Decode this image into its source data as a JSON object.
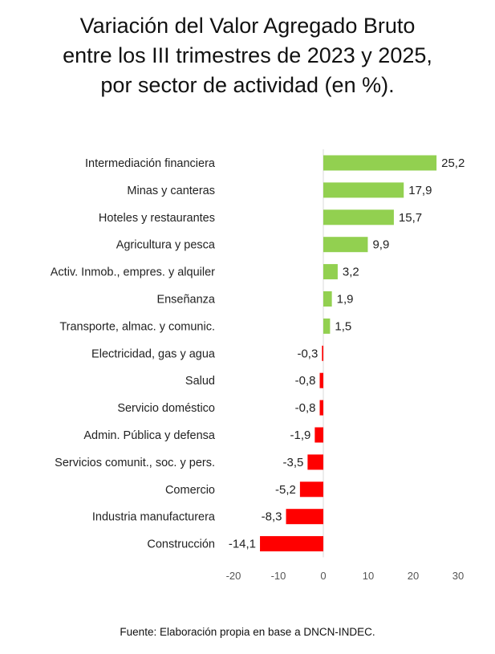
{
  "title_lines": [
    "Variación del Valor Agregado Bruto",
    "entre los III trimestres de 2023 y 2025,",
    "por sector de actividad (en %)."
  ],
  "source": "Fuente: Elaboración propia en base a DNCN-INDEC.",
  "chart_data": {
    "type": "bar",
    "orientation": "horizontal",
    "title": "Variación del Valor Agregado Bruto entre los III trimestres de 2023 y 2025, por sector de actividad (en %).",
    "categories": [
      "Intermediación financiera",
      "Minas y canteras",
      "Hoteles y restaurantes",
      "Agricultura y pesca",
      "Activ. Inmob., empres. y alquiler",
      "Enseñanza",
      "Transporte, almac. y comunic.",
      "Electricidad, gas y agua",
      "Salud",
      "Servicio doméstico",
      "Admin. Pública y defensa",
      "Servicios comunit., soc. y pers.",
      "Comercio",
      "Industria manufacturera",
      "Construcción"
    ],
    "values": [
      25.2,
      17.9,
      15.7,
      9.9,
      3.2,
      1.9,
      1.5,
      -0.3,
      -0.8,
      -0.8,
      -1.9,
      -3.5,
      -5.2,
      -8.3,
      -14.1
    ],
    "data_labels": [
      "25,2",
      "17,9",
      "15,7",
      "9,9",
      "3,2",
      "1,9",
      "1,5",
      "-0,3",
      "-0,8",
      "-0,8",
      "-1,9",
      "-3,5",
      "-5,2",
      "-8,3",
      "-14,1"
    ],
    "xlim": [
      -20,
      30
    ],
    "xticks": [
      "-20",
      "-10",
      "0",
      "10",
      "20",
      "30"
    ],
    "xtick_values": [
      -20,
      -10,
      0,
      10,
      20,
      30
    ],
    "grid": false,
    "colors": {
      "positive": "#92d050",
      "negative": "#ff0000"
    }
  }
}
